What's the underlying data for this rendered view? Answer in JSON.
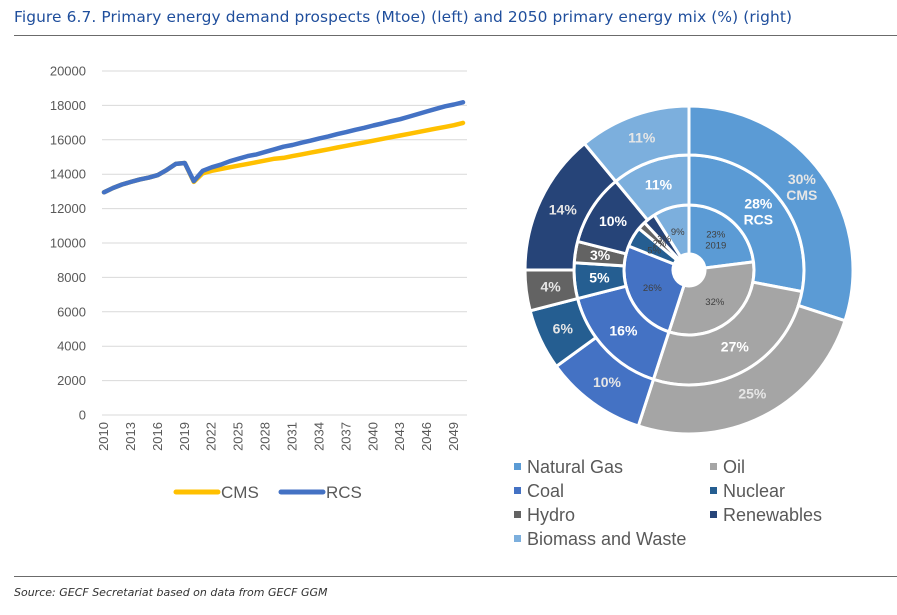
{
  "figure": {
    "title": "Figure 6.7. Primary energy demand prospects (Mtoe) (left) and 2050 primary energy mix (%) (right)",
    "source": "Source: GECF Secretariat based on data from GECF GGM"
  },
  "chart_data": [
    {
      "type": "line",
      "title": "Primary energy demand prospects (Mtoe)",
      "xlabel": "",
      "ylabel": "",
      "ylim": [
        0,
        20000
      ],
      "yticks": [
        "0",
        "2000",
        "4000",
        "6000",
        "8000",
        "10000",
        "12000",
        "14000",
        "16000",
        "18000",
        "20000"
      ],
      "xticks": [
        "2010",
        "2013",
        "2016",
        "2019",
        "2022",
        "2025",
        "2028",
        "2031",
        "2034",
        "2037",
        "2040",
        "2043",
        "2046",
        "2049"
      ],
      "grid": true,
      "legend_position": "bottom",
      "x": [
        2010,
        2011,
        2012,
        2013,
        2014,
        2015,
        2016,
        2017,
        2018,
        2019,
        2020,
        2021,
        2022,
        2023,
        2024,
        2025,
        2026,
        2027,
        2028,
        2029,
        2030,
        2031,
        2032,
        2033,
        2034,
        2035,
        2036,
        2037,
        2038,
        2039,
        2040,
        2041,
        2042,
        2043,
        2044,
        2045,
        2046,
        2047,
        2048,
        2049,
        2050
      ],
      "series": [
        {
          "name": "CMS",
          "color": "#ffc000",
          "values": [
            12950,
            13200,
            13400,
            13550,
            13700,
            13800,
            13950,
            14250,
            14600,
            14650,
            13550,
            14050,
            14200,
            14300,
            14400,
            14500,
            14600,
            14700,
            14800,
            14900,
            14950,
            15050,
            15150,
            15250,
            15350,
            15450,
            15550,
            15650,
            15750,
            15850,
            15950,
            16050,
            16150,
            16250,
            16350,
            16450,
            16550,
            16650,
            16750,
            16850,
            16980
          ]
        },
        {
          "name": "RCS",
          "color": "#4472c4",
          "values": [
            12950,
            13200,
            13400,
            13550,
            13700,
            13800,
            13950,
            14250,
            14600,
            14650,
            13600,
            14200,
            14400,
            14550,
            14750,
            14900,
            15050,
            15150,
            15300,
            15450,
            15600,
            15700,
            15830,
            15950,
            16080,
            16200,
            16330,
            16450,
            16580,
            16700,
            16830,
            16950,
            17080,
            17200,
            17350,
            17500,
            17650,
            17800,
            17950,
            18050,
            18180
          ]
        }
      ]
    },
    {
      "type": "pie",
      "subtype": "multi-level donut",
      "title": "2050 primary energy mix (%)",
      "categories": [
        "Natural Gas",
        "Oil",
        "Coal",
        "Nuclear",
        "Hydro",
        "Renewables",
        "Biomass and Waste"
      ],
      "colors": [
        "#5b9bd5",
        "#a5a5a5",
        "#4472c4",
        "#255e91",
        "#636363",
        "#264478",
        "#7cafdd"
      ],
      "rings": [
        {
          "name": "2019",
          "position": "inner",
          "values": [
            23,
            32,
            26,
            5,
            2,
            3,
            9
          ],
          "labels": [
            "23%",
            "32%",
            "26%",
            "5%",
            "2%",
            "3%",
            "9%"
          ],
          "ring_label": "2019"
        },
        {
          "name": "RCS",
          "position": "middle",
          "values": [
            28,
            27,
            16,
            5,
            3,
            10,
            11
          ],
          "labels": [
            "28%",
            "27%",
            "16%",
            "5%",
            "3%",
            "10%",
            "11%"
          ],
          "ring_label": "RCS"
        },
        {
          "name": "CMS",
          "position": "outer",
          "values": [
            30,
            25,
            10,
            6,
            4,
            14,
            11
          ],
          "labels": [
            "30%",
            "25%",
            "10%",
            "6%",
            "4%",
            "14%",
            "11%"
          ],
          "ring_label": "CMS"
        }
      ],
      "legend_position": "bottom",
      "legend": [
        "Natural Gas",
        "Oil",
        "Coal",
        "Nuclear",
        "Hydro",
        "Renewables",
        "Biomass and Waste"
      ]
    }
  ]
}
